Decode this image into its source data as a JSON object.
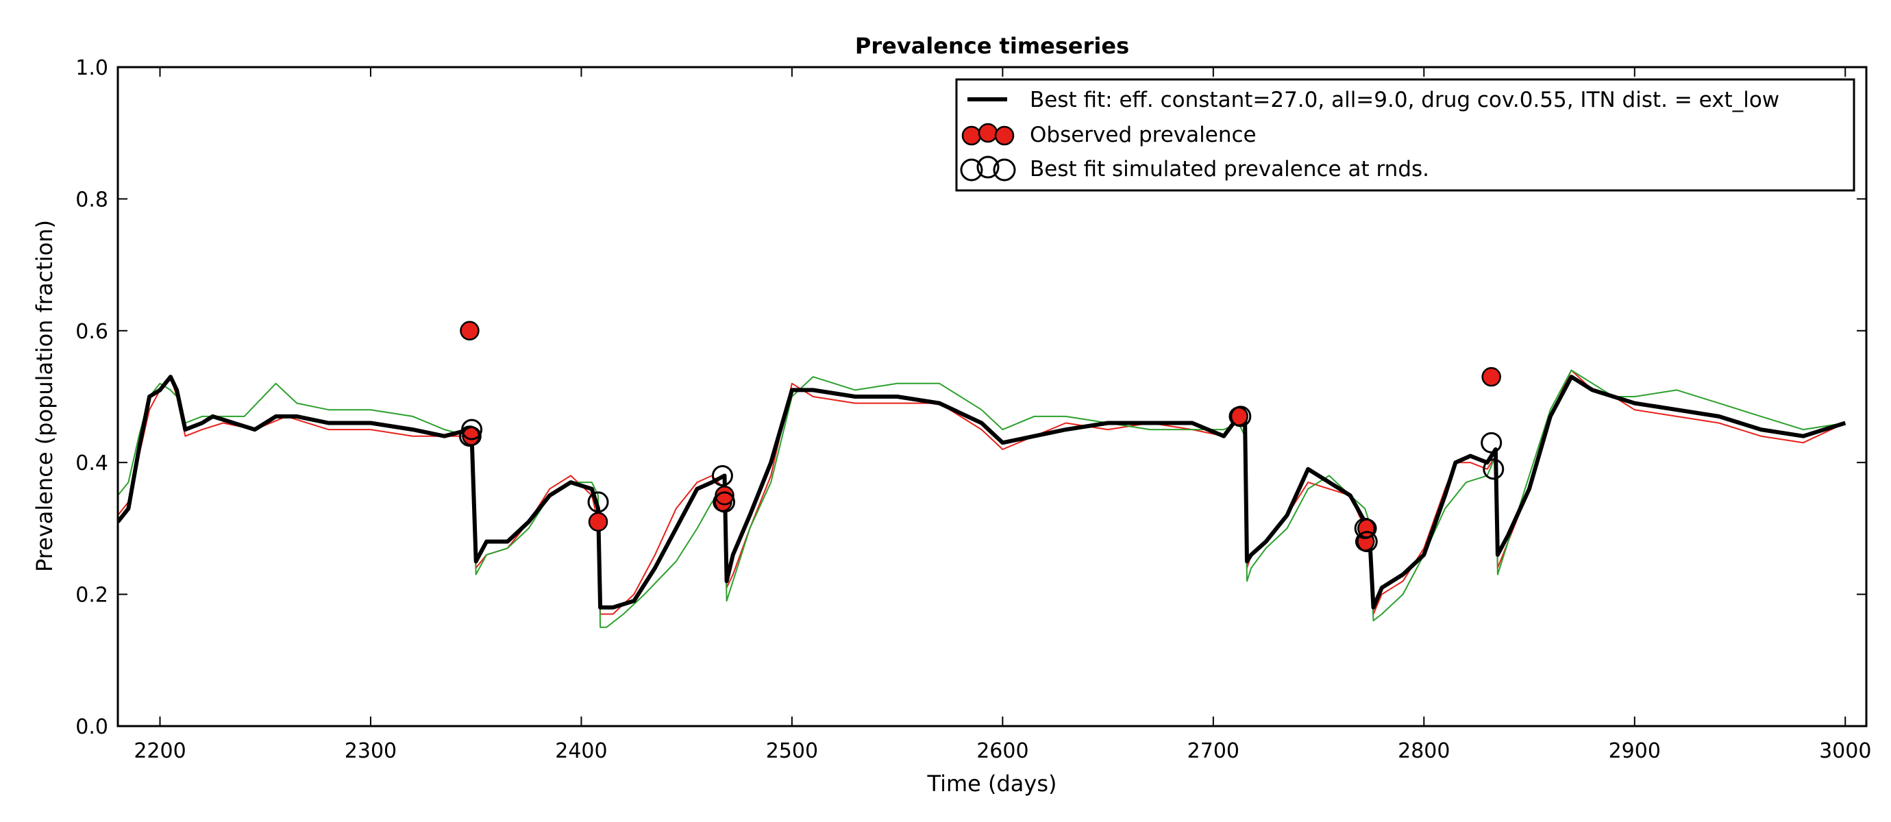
{
  "chart_data": {
    "type": "line",
    "title": "Prevalence timeseries",
    "xlabel": "Time (days)",
    "ylabel": "Prevalence (population fraction)",
    "xlim": [
      2180,
      3010
    ],
    "ylim": [
      0.0,
      1.0
    ],
    "xticks": [
      2200,
      2300,
      2400,
      2500,
      2600,
      2700,
      2800,
      2900,
      3000
    ],
    "yticks": [
      0.0,
      0.2,
      0.4,
      0.6,
      0.8,
      1.0
    ],
    "xtick_labels": [
      "2200",
      "2300",
      "2400",
      "2500",
      "2600",
      "2700",
      "2800",
      "2900",
      "3000"
    ],
    "ytick_labels": [
      "0.0",
      "0.2",
      "0.4",
      "0.6",
      "0.8",
      "1.0"
    ],
    "grid": false,
    "legend_position": "top-right",
    "legend": [
      "Best fit: eff. constant=27.0, all=9.0, drug cov.0.55, ITN dist. = ext_low",
      "Observed prevalence",
      "Best fit simulated prevalence at rnds."
    ],
    "series": [
      {
        "name": "Best fit: eff. constant=27.0, all=9.0, drug cov.0.55, ITN dist. = ext_low",
        "color": "#000000",
        "x": [
          2180,
          2185,
          2190,
          2195,
          2200,
          2205,
          2208,
          2212,
          2220,
          2225,
          2235,
          2245,
          2255,
          2265,
          2280,
          2300,
          2320,
          2335,
          2347,
          2348,
          2350,
          2355,
          2365,
          2375,
          2385,
          2395,
          2405,
          2408,
          2409,
          2415,
          2425,
          2435,
          2445,
          2455,
          2462,
          2468,
          2469,
          2472,
          2480,
          2490,
          2500,
          2510,
          2530,
          2550,
          2570,
          2590,
          2600,
          2615,
          2630,
          2650,
          2670,
          2690,
          2705,
          2712,
          2715,
          2716,
          2718,
          2725,
          2735,
          2745,
          2755,
          2765,
          2772,
          2774,
          2776,
          2780,
          2790,
          2800,
          2810,
          2815,
          2822,
          2830,
          2834,
          2835,
          2840,
          2850,
          2860,
          2870,
          2880,
          2890,
          2900,
          2920,
          2940,
          2960,
          2980,
          3000
        ],
        "y": [
          0.31,
          0.33,
          0.42,
          0.5,
          0.51,
          0.53,
          0.51,
          0.45,
          0.46,
          0.47,
          0.46,
          0.45,
          0.47,
          0.47,
          0.46,
          0.46,
          0.45,
          0.44,
          0.45,
          0.44,
          0.25,
          0.28,
          0.28,
          0.31,
          0.35,
          0.37,
          0.36,
          0.33,
          0.18,
          0.18,
          0.19,
          0.24,
          0.3,
          0.36,
          0.37,
          0.38,
          0.22,
          0.26,
          0.32,
          0.4,
          0.51,
          0.51,
          0.5,
          0.5,
          0.49,
          0.46,
          0.43,
          0.44,
          0.45,
          0.46,
          0.46,
          0.46,
          0.44,
          0.47,
          0.47,
          0.25,
          0.26,
          0.28,
          0.32,
          0.39,
          0.37,
          0.35,
          0.31,
          0.3,
          0.18,
          0.21,
          0.23,
          0.26,
          0.35,
          0.4,
          0.41,
          0.4,
          0.42,
          0.26,
          0.29,
          0.36,
          0.47,
          0.53,
          0.51,
          0.5,
          0.49,
          0.48,
          0.47,
          0.45,
          0.44,
          0.46
        ]
      },
      {
        "name": "",
        "color": "#e8201a",
        "x": [
          2180,
          2185,
          2190,
          2195,
          2200,
          2205,
          2208,
          2212,
          2220,
          2230,
          2245,
          2260,
          2280,
          2300,
          2320,
          2335,
          2347,
          2348,
          2350,
          2355,
          2365,
          2375,
          2385,
          2395,
          2405,
          2408,
          2409,
          2415,
          2425,
          2435,
          2445,
          2455,
          2462,
          2468,
          2469,
          2472,
          2480,
          2490,
          2500,
          2510,
          2530,
          2550,
          2570,
          2590,
          2600,
          2615,
          2630,
          2650,
          2670,
          2690,
          2705,
          2712,
          2715,
          2716,
          2718,
          2725,
          2735,
          2745,
          2755,
          2765,
          2772,
          2774,
          2776,
          2780,
          2790,
          2800,
          2810,
          2815,
          2822,
          2830,
          2834,
          2835,
          2840,
          2850,
          2860,
          2870,
          2880,
          2890,
          2900,
          2920,
          2940,
          2960,
          2980,
          3000
        ],
        "y": [
          0.32,
          0.34,
          0.41,
          0.48,
          0.51,
          0.53,
          0.5,
          0.44,
          0.45,
          0.46,
          0.45,
          0.47,
          0.45,
          0.45,
          0.44,
          0.44,
          0.44,
          0.43,
          0.24,
          0.26,
          0.27,
          0.31,
          0.36,
          0.38,
          0.35,
          0.31,
          0.17,
          0.17,
          0.2,
          0.26,
          0.33,
          0.37,
          0.38,
          0.36,
          0.21,
          0.23,
          0.3,
          0.38,
          0.52,
          0.5,
          0.49,
          0.49,
          0.49,
          0.45,
          0.42,
          0.44,
          0.46,
          0.45,
          0.46,
          0.45,
          0.44,
          0.47,
          0.46,
          0.24,
          0.26,
          0.28,
          0.32,
          0.37,
          0.36,
          0.35,
          0.3,
          0.28,
          0.17,
          0.2,
          0.22,
          0.27,
          0.36,
          0.4,
          0.4,
          0.39,
          0.41,
          0.24,
          0.28,
          0.36,
          0.47,
          0.54,
          0.51,
          0.5,
          0.48,
          0.47,
          0.46,
          0.44,
          0.43,
          0.46
        ]
      },
      {
        "name": "",
        "color": "#2ca02c",
        "x": [
          2180,
          2185,
          2190,
          2195,
          2200,
          2205,
          2208,
          2212,
          2220,
          2240,
          2255,
          2265,
          2280,
          2300,
          2320,
          2335,
          2347,
          2348,
          2350,
          2355,
          2365,
          2375,
          2385,
          2395,
          2405,
          2408,
          2409,
          2412,
          2420,
          2430,
          2445,
          2455,
          2462,
          2468,
          2469,
          2472,
          2480,
          2490,
          2500,
          2510,
          2530,
          2550,
          2570,
          2590,
          2600,
          2615,
          2630,
          2650,
          2670,
          2690,
          2705,
          2712,
          2715,
          2716,
          2718,
          2725,
          2735,
          2745,
          2755,
          2765,
          2772,
          2774,
          2776,
          2780,
          2790,
          2800,
          2810,
          2820,
          2830,
          2834,
          2835,
          2840,
          2850,
          2860,
          2870,
          2880,
          2890,
          2900,
          2920,
          2940,
          2960,
          2980,
          3000
        ],
        "y": [
          0.35,
          0.37,
          0.44,
          0.5,
          0.52,
          0.51,
          0.5,
          0.46,
          0.47,
          0.47,
          0.52,
          0.49,
          0.48,
          0.48,
          0.47,
          0.45,
          0.44,
          0.43,
          0.23,
          0.26,
          0.27,
          0.3,
          0.35,
          0.37,
          0.37,
          0.35,
          0.15,
          0.15,
          0.17,
          0.2,
          0.25,
          0.3,
          0.34,
          0.36,
          0.19,
          0.22,
          0.3,
          0.37,
          0.5,
          0.53,
          0.51,
          0.52,
          0.52,
          0.48,
          0.45,
          0.47,
          0.47,
          0.46,
          0.45,
          0.45,
          0.45,
          0.46,
          0.44,
          0.22,
          0.24,
          0.27,
          0.3,
          0.36,
          0.38,
          0.35,
          0.33,
          0.31,
          0.16,
          0.17,
          0.2,
          0.26,
          0.33,
          0.37,
          0.38,
          0.41,
          0.23,
          0.28,
          0.38,
          0.48,
          0.54,
          0.52,
          0.5,
          0.5,
          0.51,
          0.49,
          0.47,
          0.45,
          0.46
        ]
      }
    ],
    "observed": {
      "name": "Observed prevalence",
      "color": "#e8201a",
      "x": [
        2347,
        2348,
        2408,
        2467,
        2468,
        2712,
        2772,
        2773,
        2832
      ],
      "y": [
        0.6,
        0.44,
        0.31,
        0.34,
        0.35,
        0.47,
        0.28,
        0.3,
        0.53
      ]
    },
    "simulated_at_rnds": {
      "name": "Best fit simulated prevalence at rnds.",
      "x": [
        2347,
        2348,
        2408,
        2467,
        2468,
        2713,
        2772,
        2773,
        2832,
        2833
      ],
      "y": [
        0.44,
        0.45,
        0.34,
        0.38,
        0.34,
        0.47,
        0.3,
        0.28,
        0.43,
        0.39
      ]
    }
  }
}
